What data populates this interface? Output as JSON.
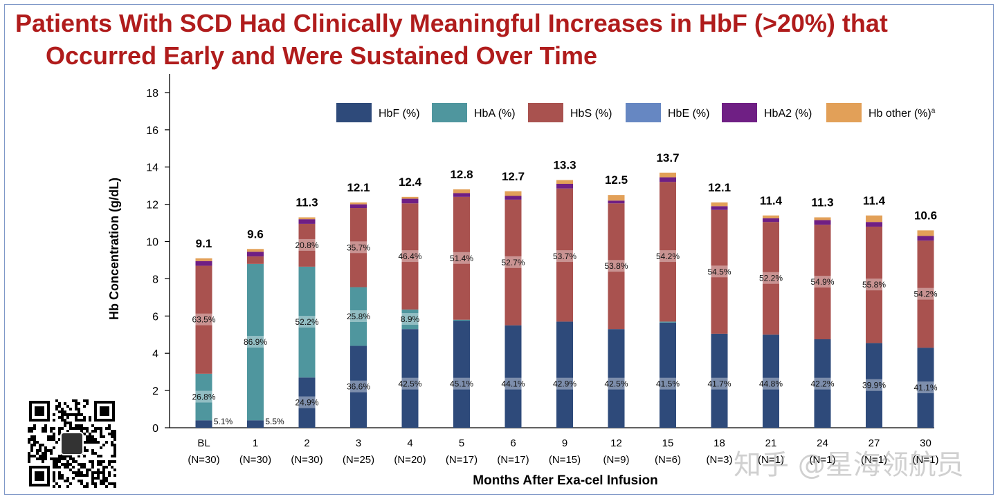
{
  "title": {
    "line1": "Patients With SCD Had Clinically Meaningful Increases in HbF (>20%) that",
    "line2": "Occurred Early and Were Sustained Over Time"
  },
  "watermark": "知乎 @星海领航员",
  "colors": {
    "title": "#b01c1c",
    "HbF": "#2e4a7a",
    "HbA": "#4f969e",
    "HbS": "#a9524f",
    "HbE": "#6687c2",
    "HbA2": "#6f1f84",
    "Hbother": "#e2a058"
  },
  "chart_data": {
    "type": "bar",
    "stacked": true,
    "xlabel": "Months After Exa-cel Infusion",
    "ylabel": "Hb Concentration (g/dL)",
    "ylim": [
      0,
      19
    ],
    "yticks": [
      0,
      2,
      4,
      6,
      8,
      10,
      12,
      14,
      16,
      18
    ],
    "legend": [
      "HbF (%)",
      "HbA (%)",
      "HbS (%)",
      "HbE (%)",
      "HbA2 (%)",
      "Hb other (%)"
    ],
    "legend_superscript": "a",
    "legend_position": "top-right",
    "categories": [
      "BL",
      "1",
      "2",
      "3",
      "4",
      "5",
      "6",
      "9",
      "12",
      "15",
      "18",
      "21",
      "24",
      "27",
      "30"
    ],
    "n_labels": [
      "(N=30)",
      "(N=30)",
      "(N=30)",
      "(N=25)",
      "(N=20)",
      "(N=17)",
      "(N=17)",
      "(N=15)",
      "(N=9)",
      "(N=6)",
      "(N=3)",
      "(N=1)",
      "(N=1)",
      "(N=1)",
      "(N=1)"
    ],
    "totals": [
      "9.1",
      "9.6",
      "11.3",
      "12.1",
      "12.4",
      "12.8",
      "12.7",
      "13.3",
      "12.5",
      "13.7",
      "12.1",
      "11.4",
      "11.3",
      "11.4",
      "10.6"
    ],
    "series": [
      {
        "name": "HbF",
        "values": [
          0.4,
          0.4,
          2.7,
          4.4,
          5.3,
          5.75,
          5.5,
          5.7,
          5.3,
          5.65,
          5.05,
          5.0,
          4.75,
          4.55,
          4.3
        ]
      },
      {
        "name": "HbA",
        "values": [
          2.5,
          8.4,
          5.95,
          3.15,
          1.05,
          0.05,
          0,
          0,
          0,
          0.05,
          0,
          0,
          0,
          0,
          0
        ]
      },
      {
        "name": "HbS",
        "values": [
          5.8,
          0.4,
          2.3,
          4.25,
          5.7,
          6.6,
          6.75,
          7.15,
          6.75,
          7.5,
          6.65,
          6.05,
          6.15,
          6.25,
          5.75
        ]
      },
      {
        "name": "HbE",
        "values": [
          0,
          0,
          0,
          0,
          0,
          0,
          0,
          0,
          0,
          0,
          0,
          0,
          0,
          0,
          0
        ]
      },
      {
        "name": "HbA2",
        "values": [
          0.25,
          0.25,
          0.25,
          0.2,
          0.25,
          0.2,
          0.2,
          0.25,
          0.15,
          0.25,
          0.2,
          0.2,
          0.25,
          0.25,
          0.25
        ]
      },
      {
        "name": "Hb other",
        "values": [
          0.15,
          0.15,
          0.1,
          0.1,
          0.1,
          0.2,
          0.25,
          0.2,
          0.3,
          0.25,
          0.2,
          0.15,
          0.15,
          0.35,
          0.3
        ]
      }
    ],
    "pct_labels": {
      "HbF": [
        "5.1%",
        "5.5%",
        "24.9%",
        "36.6%",
        "42.5%",
        "45.1%",
        "44.1%",
        "42.9%",
        "42.5%",
        "41.5%",
        "41.7%",
        "44.8%",
        "42.2%",
        "39.9%",
        "41.1%"
      ],
      "HbA": [
        "26.8%",
        "86.9%",
        "52.2%",
        "25.8%",
        "8.9%",
        "",
        "",
        "",
        "",
        "",
        "",
        "",
        "",
        "",
        ""
      ],
      "HbS": [
        "63.5%",
        "",
        "20.8%",
        "35.7%",
        "46.4%",
        "51.4%",
        "52.7%",
        "53.7%",
        "53.8%",
        "54.2%",
        "54.5%",
        "52.2%",
        "54.9%",
        "55.8%",
        "54.2%"
      ]
    }
  }
}
